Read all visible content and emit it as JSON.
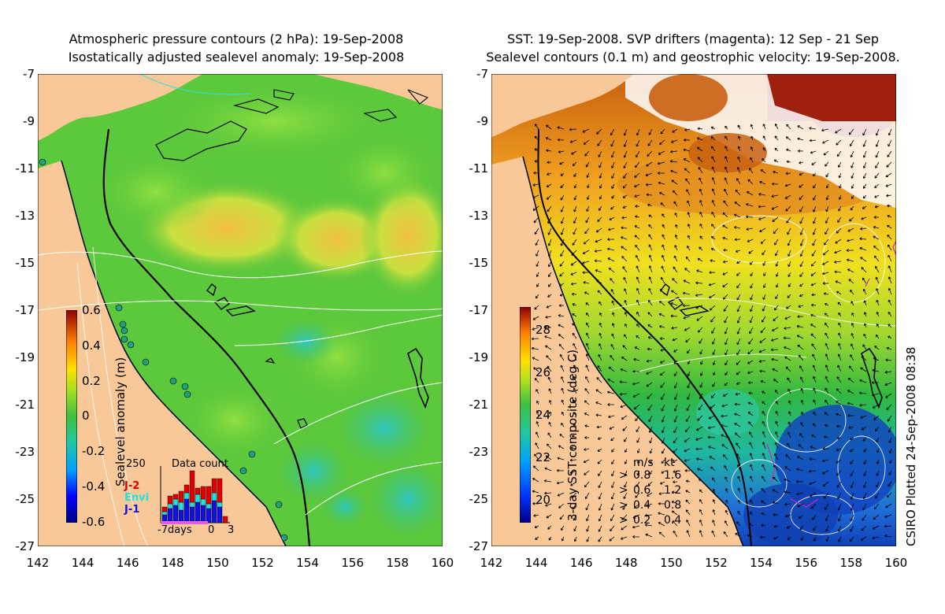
{
  "panel_left": {
    "title_line1": "Atmospheric pressure contours (2 hPa): 19-Sep-2008",
    "title_line2": "Isostatically adjusted sealevel anomaly: 19-Sep-2008",
    "colorbar_label": "Sealevel anomaly (m)",
    "colorbar_ticks": [
      "0.6",
      "0.4",
      "0.2",
      "0",
      "-0.2",
      "-0.4",
      "-0.6"
    ],
    "inset": {
      "title": "Data count",
      "ymax_label": "250",
      "legend": [
        {
          "label": "J-2",
          "color": "#e00000"
        },
        {
          "label": "Envi",
          "color": "#20e0e0"
        },
        {
          "label": "J-1",
          "color": "#1010e0"
        }
      ],
      "xlabels": [
        "-7days",
        "0",
        "3"
      ]
    }
  },
  "panel_right": {
    "title_line1": "SST: 19-Sep-2008. SVP drifters (magenta): 12 Sep - 21 Sep",
    "title_line2": "Sealevel contours (0.1 m) and geostrophic velocity: 19-Sep-2008.",
    "colorbar_label": "3-day SST composite (deg C)",
    "colorbar_ticks": [
      "28",
      "26",
      "24",
      "22",
      "20"
    ],
    "velocity_legend": {
      "header_ms": "m/s",
      "header_kt": "kt",
      "rows": [
        {
          "ms": "0.8",
          "kt": "1.6"
        },
        {
          "ms": "0.6",
          "kt": "1.2"
        },
        {
          "ms": "0.4",
          "kt": "0.8"
        },
        {
          "ms": "0.2",
          "kt": "0.4"
        }
      ]
    },
    "credit": "CSIRO Plotted 24-Sep-2008 08:38"
  },
  "axes": {
    "lat_ticks": [
      "-7",
      "-9",
      "-11",
      "-13",
      "-15",
      "-17",
      "-19",
      "-21",
      "-23",
      "-25",
      "-27"
    ],
    "lon_ticks": [
      "142",
      "144",
      "146",
      "148",
      "150",
      "152",
      "154",
      "156",
      "158",
      "160"
    ]
  },
  "colors": {
    "land": "#f8c898",
    "sla_mid": "#5cc83c",
    "sst_warm": "#e09020",
    "sst_cool": "#2060d0"
  }
}
